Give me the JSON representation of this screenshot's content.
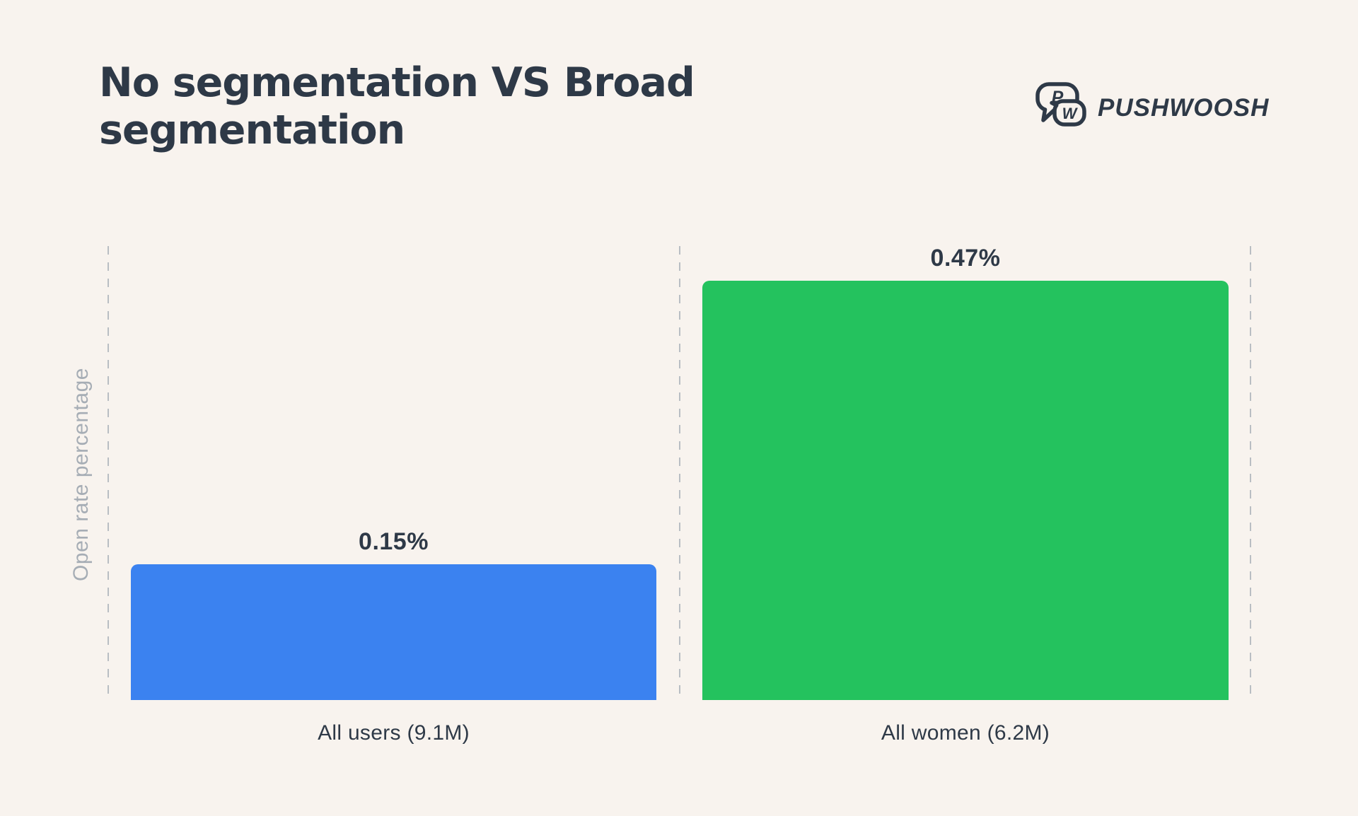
{
  "header": {
    "title": "No segmentation VS Broad segmentation",
    "brand": {
      "name": "PUSHWOOSH",
      "logo_letter_1": "P",
      "logo_letter_2": "W"
    }
  },
  "chart_data": {
    "type": "bar",
    "title": "No segmentation VS Broad segmentation",
    "ylabel": "Open rate percentage",
    "categories": [
      "All users (9.1M)",
      "All women (6.2M)"
    ],
    "values": [
      0.15,
      0.47
    ],
    "value_labels": [
      "0.15%",
      "0.47%"
    ],
    "bar_colors": [
      "#3b82f0",
      "#24c25e"
    ],
    "legend": "none",
    "grid": "vertical dashed separators at plot left, middle and right",
    "axis_ticks": "none (bars labeled directly)"
  },
  "colors": {
    "background": "#f8f3ee",
    "text_dark": "#2e3947",
    "text_muted": "#a6adb5",
    "grid_dash": "#b9bec3",
    "bar_blue": "#3b82f0",
    "bar_green": "#24c25e"
  }
}
